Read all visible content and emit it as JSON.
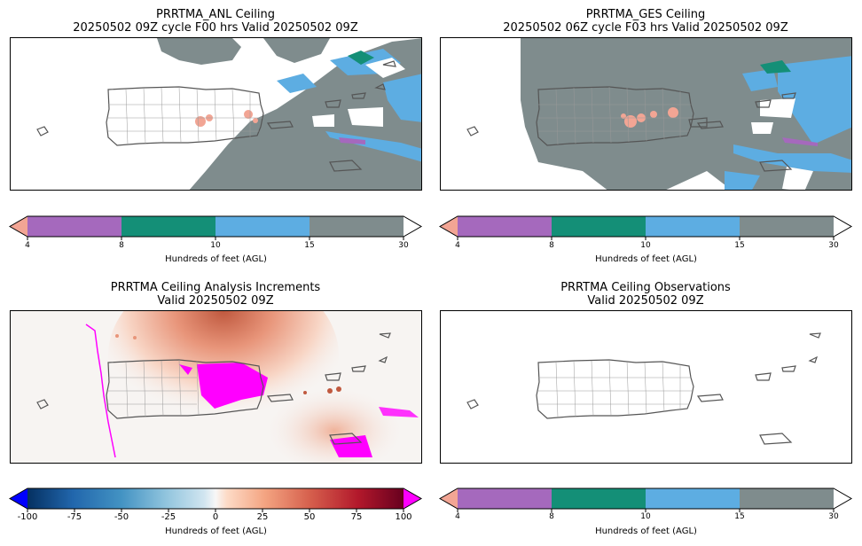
{
  "panels": {
    "anl": {
      "title_line1": "PRRTMA_ANL Ceiling",
      "title_line2": "20250502 09Z cycle F00 hrs Valid 20250502 09Z"
    },
    "ges": {
      "title_line1": "PRRTMA_GES Ceiling",
      "title_line2": "20250502 06Z cycle F03 hrs Valid 20250502 09Z"
    },
    "inc": {
      "title_line1": "PRRTMA Ceiling Analysis Increments",
      "title_line2": "Valid 20250502 09Z"
    },
    "obs": {
      "title_line1": "PRRTMA Ceiling Observations",
      "title_line2": "Valid 20250502 09Z"
    }
  },
  "ceiling_colorbar": {
    "label": "Hundreds of feet (AGL)",
    "ticks": [
      "4",
      "8",
      "10",
      "15",
      "30"
    ],
    "colors": {
      "under": "#f2a594",
      "bin_4_8": "#a569bd",
      "bin_8_10": "#148f77",
      "bin_10_15": "#5dade2",
      "bin_15_30": "#7f8c8d",
      "over": "#ffffff"
    }
  },
  "increment_colorbar": {
    "label": "Hundreds of feet (AGL)",
    "ticks": [
      "-100",
      "-75",
      "-50",
      "-25",
      "0",
      "25",
      "50",
      "75",
      "100"
    ],
    "colors": {
      "under": "#0000ff",
      "over": "#ff00ff",
      "colormap": "RdBu_r"
    }
  },
  "map_colors": {
    "cloud_gray": "#7f8c8d",
    "cloud_blue": "#5dade2",
    "low_pink": "#f2a594",
    "increment_magenta": "#ff00ff",
    "coast": "#555555"
  }
}
